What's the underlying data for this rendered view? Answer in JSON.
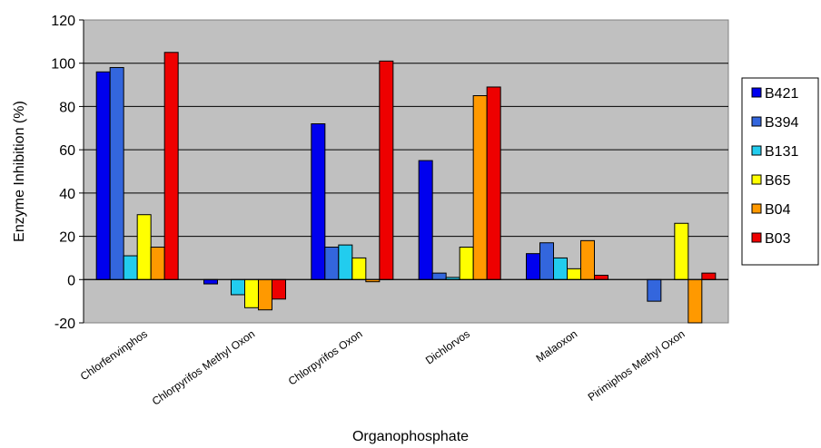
{
  "chart_data": {
    "type": "bar",
    "categories": [
      "Chlorfenvinphos",
      "Chlorpyrifos Methyl Oxon",
      "Chlorpyrifos Oxon",
      "Dichlorvos",
      "Malaoxon",
      "Pirimiphos Methyl Oxon"
    ],
    "series": [
      {
        "name": "B421",
        "color": "#0000ee",
        "values": [
          96,
          -2,
          72,
          55,
          12,
          0
        ]
      },
      {
        "name": "B394",
        "color": "#3366dd",
        "values": [
          98,
          0,
          15,
          3,
          17,
          -10
        ]
      },
      {
        "name": "B131",
        "color": "#22ccee",
        "values": [
          11,
          -7,
          16,
          1,
          10,
          0
        ]
      },
      {
        "name": "B65",
        "color": "#ffff00",
        "values": [
          30,
          -13,
          10,
          15,
          5,
          26
        ]
      },
      {
        "name": "B04",
        "color": "#ff9900",
        "values": [
          15,
          -14,
          -1,
          85,
          18,
          -20
        ]
      },
      {
        "name": "B03",
        "color": "#ee0000",
        "values": [
          105,
          -9,
          101,
          89,
          2,
          3
        ]
      }
    ],
    "xlabel": "Organophosphate",
    "ylabel": "Enzyme Inhibition (%)",
    "ylim": [
      -20,
      120
    ],
    "yticks": [
      -20,
      0,
      20,
      40,
      60,
      80,
      100,
      120
    ],
    "grid": true,
    "legend_position": "right",
    "plot_background": "#c0c0c0"
  }
}
